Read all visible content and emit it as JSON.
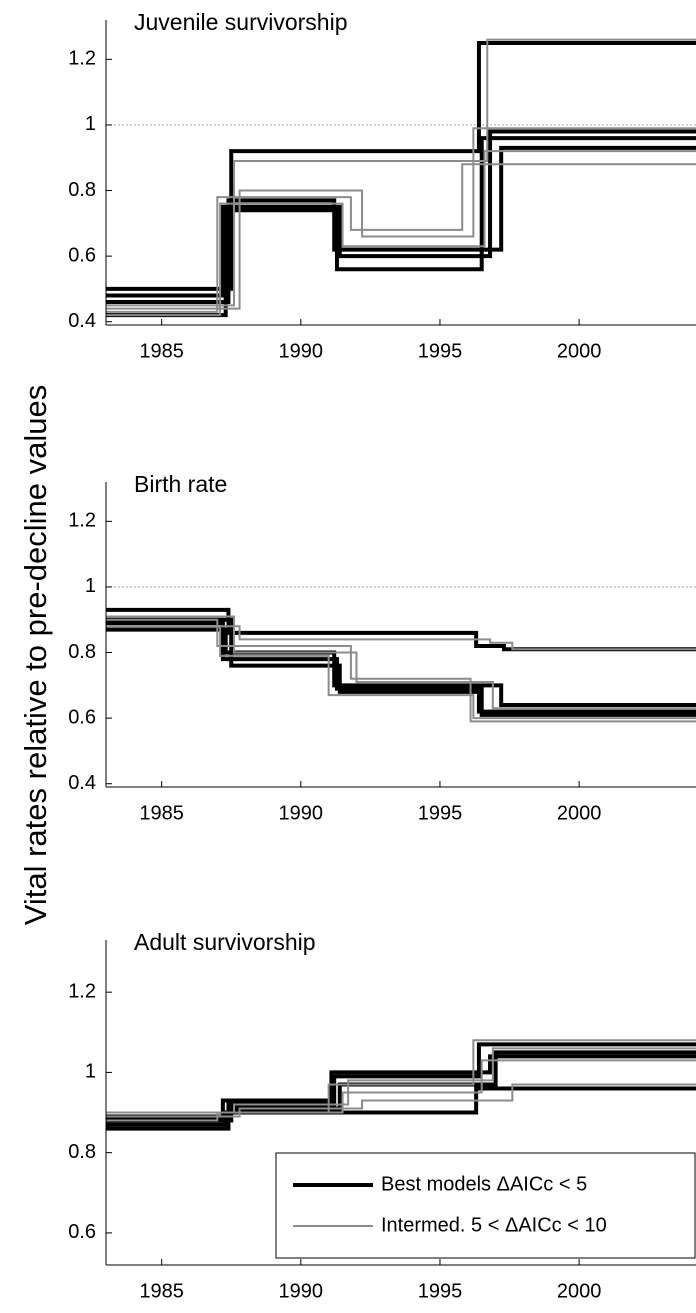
{
  "shared_ylabel": "Vital rates relative to pre-decline values",
  "chart_data": [
    {
      "type": "step",
      "title": "Juvenile survivorship",
      "xlim": [
        1983,
        2004.2
      ],
      "xticks": [
        1985,
        1990,
        1995,
        2000
      ],
      "ylim": [
        0.39,
        1.32
      ],
      "yticks": [
        0.4,
        0.6,
        0.8,
        1,
        1.2
      ],
      "hline": 1,
      "series": [
        {
          "color": "#000000",
          "lines": [
            {
              "x": [
                1983,
                1987.5,
                1987.5,
                1996.4,
                1996.4,
                2004.2
              ],
              "values": [
                0.5,
                0.5,
                0.92,
                0.92,
                1.25,
                1.25
              ]
            },
            {
              "x": [
                1983,
                1987.3,
                1987.3,
                1991.3,
                1991.3,
                1996.5,
                1996.5,
                2004.2
              ],
              "values": [
                0.42,
                0.42,
                0.74,
                0.74,
                0.56,
                0.56,
                0.96,
                0.96
              ]
            },
            {
              "x": [
                1983,
                1987.4,
                1987.4,
                1991.2,
                1991.2,
                1997.2,
                1997.2,
                2004.2
              ],
              "values": [
                0.46,
                0.46,
                0.77,
                0.77,
                0.62,
                0.62,
                0.93,
                0.93
              ]
            },
            {
              "x": [
                1983,
                1987.2,
                1987.2,
                1991.4,
                1991.4,
                1996.8,
                1996.8,
                2004.2
              ],
              "values": [
                0.48,
                0.48,
                0.75,
                0.75,
                0.6,
                0.6,
                0.98,
                0.98
              ]
            }
          ]
        },
        {
          "color": "#8c8c8c",
          "lines": [
            {
              "x": [
                1983,
                1987.8,
                1987.8,
                1992.2,
                1992.2,
                1996.2,
                1996.2,
                2004.2
              ],
              "values": [
                0.44,
                0.44,
                0.8,
                0.8,
                0.66,
                0.66,
                0.99,
                0.99
              ]
            },
            {
              "x": [
                1983,
                1987,
                1987,
                1991.8,
                1991.8,
                1995.8,
                1995.8,
                2004.2
              ],
              "values": [
                0.43,
                0.43,
                0.78,
                0.78,
                0.68,
                0.68,
                0.88,
                0.88
              ]
            },
            {
              "x": [
                1983,
                1987.6,
                1987.6,
                1996.7,
                1996.7,
                2004.2
              ],
              "values": [
                0.45,
                0.45,
                0.89,
                0.89,
                1.26,
                1.26
              ]
            },
            {
              "x": [
                1983,
                1987.1,
                1987.1,
                1991.5,
                1991.5,
                1996.6,
                1996.6,
                2004.2
              ],
              "values": [
                0.42,
                0.42,
                0.76,
                0.76,
                0.63,
                0.63,
                0.92,
                0.92
              ]
            }
          ]
        }
      ]
    },
    {
      "type": "step",
      "title": "Birth rate",
      "xlim": [
        1983,
        2004.2
      ],
      "xticks": [
        1985,
        1990,
        1995,
        2000
      ],
      "ylim": [
        0.39,
        1.32
      ],
      "yticks": [
        0.4,
        0.6,
        0.8,
        1,
        1.2
      ],
      "hline": 1,
      "series": [
        {
          "color": "#000000",
          "lines": [
            {
              "x": [
                1983,
                1987.4,
                1987.4,
                1996.3,
                1996.3,
                1997.3,
                1997.3,
                2004.2
              ],
              "values": [
                0.93,
                0.93,
                0.86,
                0.86,
                0.82,
                0.82,
                0.81,
                0.81
              ]
            },
            {
              "x": [
                1983,
                1987.3,
                1987.3,
                1991.2,
                1991.2,
                1997.2,
                1997.2,
                2004.2
              ],
              "values": [
                0.87,
                0.87,
                0.8,
                0.8,
                0.7,
                0.7,
                0.64,
                0.64
              ]
            },
            {
              "x": [
                1983,
                1987.5,
                1987.5,
                1991.4,
                1991.4,
                1996.4,
                1996.4,
                2004.2
              ],
              "values": [
                0.9,
                0.9,
                0.76,
                0.76,
                0.68,
                0.68,
                0.62,
                0.62
              ]
            },
            {
              "x": [
                1983,
                1987.2,
                1987.2,
                1991.3,
                1991.3,
                1996.5,
                1996.5,
                2004.2
              ],
              "values": [
                0.89,
                0.89,
                0.78,
                0.78,
                0.69,
                0.69,
                0.61,
                0.61
              ]
            }
          ]
        },
        {
          "color": "#8c8c8c",
          "lines": [
            {
              "x": [
                1983,
                1987.8,
                1987.8,
                1996.8,
                1996.8,
                1997.6,
                1997.6,
                2004.2
              ],
              "values": [
                0.88,
                0.88,
                0.84,
                0.84,
                0.83,
                0.83,
                0.81,
                0.81
              ]
            },
            {
              "x": [
                1983,
                1987,
                1987,
                1991.8,
                1991.8,
                1996.1,
                1996.1,
                2004.2
              ],
              "values": [
                0.9,
                0.9,
                0.82,
                0.82,
                0.72,
                0.72,
                0.59,
                0.59
              ]
            },
            {
              "x": [
                1983,
                1987.1,
                1987.1,
                1991,
                1991,
                1996.2,
                1996.2,
                2004.2
              ],
              "values": [
                0.88,
                0.88,
                0.79,
                0.79,
                0.67,
                0.67,
                0.6,
                0.6
              ]
            },
            {
              "x": [
                1983,
                1987.6,
                1987.6,
                1992,
                1992,
                1996.9,
                1996.9,
                2004.2
              ],
              "values": [
                0.91,
                0.91,
                0.8,
                0.8,
                0.71,
                0.71,
                0.63,
                0.63
              ]
            }
          ]
        }
      ]
    },
    {
      "type": "step",
      "title": "Adult survivorship",
      "xlim": [
        1983,
        2004.2
      ],
      "xticks": [
        1985,
        1990,
        1995,
        2000
      ],
      "ylim": [
        0.52,
        1.33
      ],
      "yticks": [
        0.6,
        0.8,
        1,
        1.2
      ],
      "legend": "lower right",
      "series": [
        {
          "name": "Best models ΔAICc < 5",
          "color": "#000000",
          "lines": [
            {
              "x": [
                1983,
                1987.4,
                1987.4,
                1991.2,
                1991.2,
                1996.4,
                1996.4,
                2004.2
              ],
              "values": [
                0.86,
                0.86,
                0.92,
                0.92,
                0.99,
                0.99,
                1.07,
                1.07
              ]
            },
            {
              "x": [
                1983,
                1987.3,
                1987.3,
                1996.3,
                1996.3,
                2004.2
              ],
              "values": [
                0.87,
                0.87,
                0.9,
                0.9,
                0.96,
                0.96
              ]
            },
            {
              "x": [
                1983,
                1987.5,
                1987.5,
                1991.4,
                1991.4,
                1997,
                1997,
                2004.2
              ],
              "values": [
                0.88,
                0.88,
                0.91,
                0.91,
                0.97,
                0.97,
                1.05,
                1.05
              ]
            },
            {
              "x": [
                1983,
                1987.2,
                1987.2,
                1991.1,
                1991.1,
                1996.8,
                1996.8,
                2004.2
              ],
              "values": [
                0.89,
                0.89,
                0.93,
                0.93,
                1,
                1,
                1.04,
                1.04
              ]
            }
          ]
        },
        {
          "name": "Intermed. 5 < ΔAICc < 10",
          "color": "#8c8c8c",
          "lines": [
            {
              "x": [
                1983,
                1987,
                1987,
                1991,
                1991,
                1996.2,
                1996.2,
                2004.2
              ],
              "values": [
                0.88,
                0.88,
                0.9,
                0.9,
                0.97,
                0.97,
                1.08,
                1.08
              ]
            },
            {
              "x": [
                1983,
                1987.8,
                1987.8,
                1992.2,
                1992.2,
                1997.6,
                1997.6,
                2004.2
              ],
              "values": [
                0.89,
                0.89,
                0.91,
                0.91,
                0.93,
                0.93,
                0.97,
                0.97
              ]
            },
            {
              "x": [
                1983,
                1987.6,
                1987.6,
                1991.7,
                1991.7,
                1996.9,
                1996.9,
                2004.2
              ],
              "values": [
                0.9,
                0.9,
                0.92,
                0.92,
                0.98,
                0.98,
                1.06,
                1.06
              ]
            },
            {
              "x": [
                1983,
                1987.1,
                1987.1,
                1991.5,
                1991.5,
                1996.5,
                1996.5,
                2004.2
              ],
              "values": [
                0.89,
                0.89,
                0.9,
                0.9,
                0.95,
                0.95,
                1.03,
                1.03
              ]
            }
          ]
        }
      ]
    }
  ]
}
